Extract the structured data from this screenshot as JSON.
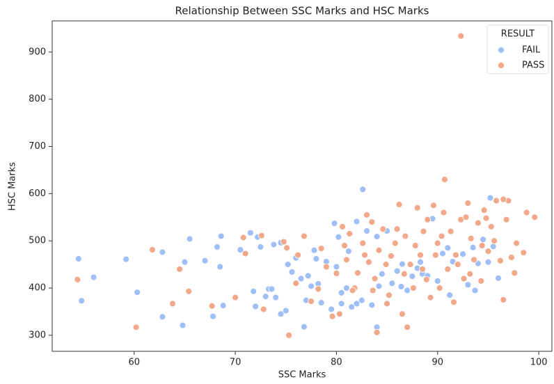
{
  "chart_data": {
    "type": "scatter",
    "title": "Relationship Between SSC Marks and HSC Marks",
    "x_label": "SSC Marks",
    "y_label": "HSC Marks",
    "legend_title": "RESULT",
    "legend": "upper right",
    "xlim": [
      51.9,
      101.3
    ],
    "xticks": [
      60,
      70,
      80,
      90,
      100
    ],
    "ylim": [
      266,
      966
    ],
    "yticks": [
      300,
      400,
      500,
      600,
      700,
      800,
      900
    ],
    "series": [
      {
        "name": "FAIL",
        "color": "#a1bff7",
        "x": [
          54.5,
          54.8,
          56,
          59.2,
          60.3,
          62.8,
          62.8,
          64.8,
          65,
          65.5,
          67,
          67.8,
          68.2,
          68.5,
          68.6,
          68.8,
          70.5,
          71.5,
          71.8,
          72,
          72.2,
          72.5,
          73,
          73.3,
          73.6,
          73.8,
          74,
          74.5,
          74.5,
          75,
          75.2,
          75.6,
          76,
          76.5,
          76.8,
          77,
          77.2,
          77.5,
          77.8,
          78,
          78.2,
          78.5,
          79,
          79.5,
          79.8,
          80,
          80.2,
          80.5,
          81,
          81.2,
          81.5,
          82,
          82.5,
          82.6,
          83,
          83.5,
          84,
          84,
          84.5,
          85,
          85.5,
          86,
          86.5,
          87,
          87.5,
          88,
          88.5,
          89,
          89.5,
          90,
          90.5,
          91,
          91.5,
          92,
          92.5,
          93,
          93.5,
          94,
          94.5,
          95,
          95.2,
          95.5,
          96,
          93.7,
          91.2,
          88.3,
          86.4,
          84.2,
          82,
          80.5
        ],
        "values": [
          462,
          373,
          423,
          461,
          391,
          476,
          339,
          321,
          455,
          504,
          458,
          340,
          487,
          445,
          510,
          363,
          481,
          517,
          393,
          361,
          508,
          487,
          382,
          398,
          398,
          492,
          380,
          496,
          345,
          352,
          450,
          434,
          464,
          420,
          318,
          374,
          426,
          404,
          480,
          462,
          409,
          369,
          456,
          355,
          537,
          445,
          508,
          367,
          400,
          478,
          360,
          541,
          374,
          609,
          521,
          364,
          317,
          509,
          430,
          521,
          410,
          436,
          451,
          395,
          425,
          442,
          430,
          426,
          547,
          415,
          473,
          485,
          456,
          451,
          472,
          407,
          486,
          452,
          503,
          455,
          591,
          488,
          421,
          395,
          385,
          455,
          403,
          404,
          367,
          390
        ]
      },
      {
        "name": "PASS",
        "color": "#f2a98b",
        "x": [
          92.3,
          90.7,
          54.4,
          60.2,
          61.8,
          63.8,
          64.5,
          65.4,
          67.7,
          70,
          70.8,
          71,
          72.6,
          72.8,
          74.8,
          75.1,
          75.3,
          76,
          76.8,
          77.5,
          78.5,
          79,
          80,
          80.3,
          80.6,
          81,
          81.3,
          81.8,
          82.1,
          82.6,
          83,
          83.2,
          83.5,
          83.8,
          84,
          84.2,
          84.6,
          85,
          85.4,
          85.8,
          86,
          86.2,
          86.5,
          86.8,
          87,
          87.3,
          87.6,
          88,
          88.3,
          88.6,
          89,
          89.3,
          89.6,
          90,
          90.2,
          90.6,
          91,
          91.3,
          91.6,
          92,
          92.3,
          92.6,
          93,
          93.3,
          93.6,
          94,
          94.3,
          94.6,
          95,
          95.3,
          95.8,
          96.2,
          96.5,
          96.8,
          97,
          97.3,
          97.6,
          97.8,
          98.5,
          98.8,
          99.6,
          96.5,
          94.8,
          92.8,
          89.8,
          88.9,
          87.8,
          86.7,
          85.2,
          84.9,
          83.6,
          82.8,
          81.6,
          80.8,
          79.6,
          78.2,
          76.2,
          88.5,
          90.4,
          91.8,
          93.2,
          94.4,
          95.6
        ],
        "values": [
          934,
          630,
          418,
          317,
          481,
          367,
          440,
          393,
          362,
          380,
          507,
          473,
          511,
          355,
          498,
          485,
          300,
          410,
          510,
          372,
          484,
          445,
          431,
          345,
          530,
          460,
          515,
          400,
          432,
          495,
          555,
          455,
          540,
          420,
          306,
          480,
          525,
          367,
          468,
          495,
          525,
          577,
          345,
          510,
          317,
          450,
          400,
          570,
          470,
          520,
          545,
          380,
          575,
          495,
          400,
          560,
          440,
          520,
          370,
          450,
          545,
          420,
          580,
          505,
          460,
          538,
          415,
          565,
          478,
          530,
          585,
          458,
          375,
          545,
          585,
          465,
          432,
          495,
          475,
          560,
          550,
          588,
          548,
          550,
          470,
          418,
          490,
          430,
          385,
          450,
          395,
          470,
          395,
          490,
          340,
          398,
          470,
          440,
          510,
          470,
          430,
          490,
          500
        ]
      }
    ]
  }
}
